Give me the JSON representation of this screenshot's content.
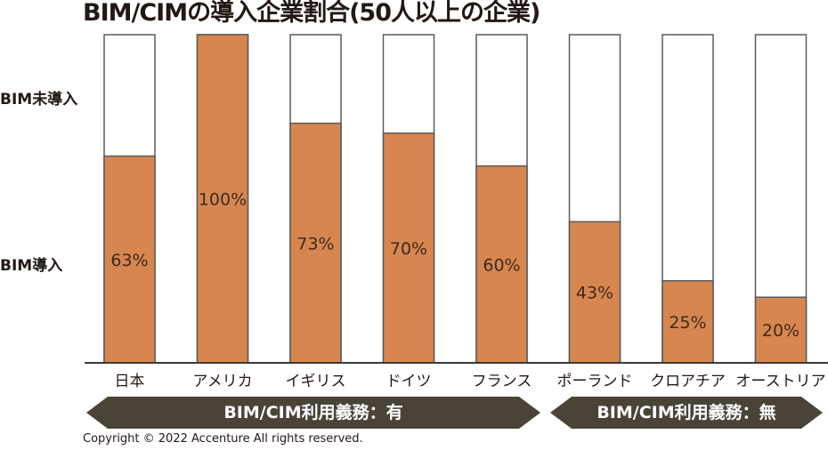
{
  "chart_data": {
    "type": "bar",
    "title": "BIM/CIMの導入企業割合(50人以上の企業)",
    "categories": [
      "日本",
      "アメリカ",
      "イギリス",
      "ドイツ",
      "フランス",
      "ポーランド",
      "クロアチア",
      "オーストリア"
    ],
    "series": [
      {
        "name": "BIM導入",
        "values": [
          63,
          100,
          73,
          70,
          60,
          43,
          25,
          20
        ]
      },
      {
        "name": "BIM未導入",
        "values": [
          37,
          0,
          27,
          30,
          40,
          57,
          75,
          80
        ]
      }
    ],
    "data_labels": [
      "63%",
      "100%",
      "73%",
      "70%",
      "60%",
      "43%",
      "25%",
      "20%"
    ],
    "ylim": [
      0,
      100
    ],
    "grid": false,
    "stacked": true,
    "colors": {
      "adopted": "#d8864f",
      "not_adopted": "#ffffff",
      "outline": "#5a5a5a",
      "arrow": "#4a4338"
    },
    "groups": [
      {
        "label": "BIM/CIM利用義務：有",
        "categories": [
          "日本",
          "アメリカ",
          "イギリス",
          "ドイツ",
          "フランス"
        ]
      },
      {
        "label": "BIM/CIM利用義務：無",
        "categories": [
          "ポーランド",
          "クロアチア",
          "オーストリア"
        ]
      }
    ]
  },
  "labels": {
    "not_adopted": "BIM未導入",
    "adopted": "BIM導入"
  },
  "footer": {
    "copyright": "Copyright © 2022 Accenture All rights reserved."
  }
}
